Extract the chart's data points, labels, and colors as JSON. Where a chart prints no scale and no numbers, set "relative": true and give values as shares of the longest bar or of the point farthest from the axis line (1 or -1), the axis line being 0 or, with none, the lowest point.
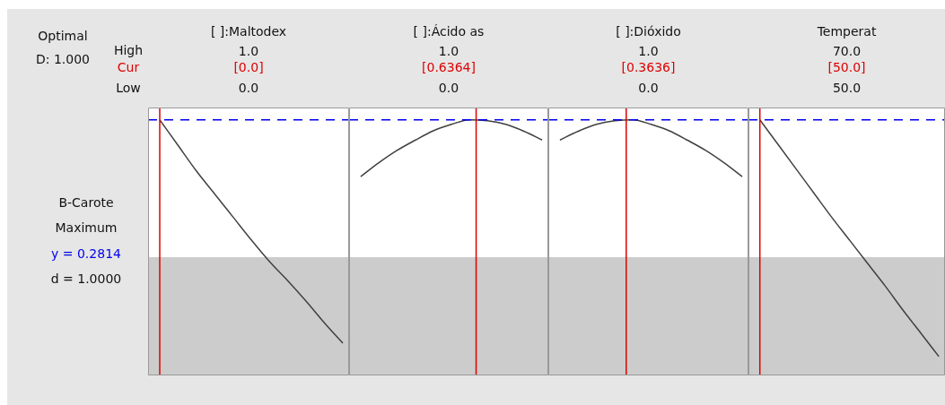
{
  "chart_data": [
    {
      "type": "line",
      "title": "[ ]:Maltodex",
      "relative": true,
      "tick_labels": false,
      "categories": [
        null,
        null,
        null,
        null,
        null,
        null,
        null,
        null,
        null,
        null,
        null
      ],
      "series": [
        {
          "color": "#404040",
          "values": [
            1,
            0.9,
            0.8,
            0.71,
            0.62,
            0.53,
            0.445,
            0.37,
            0.29,
            0.205,
            0.126
          ]
        }
      ],
      "ref_lines": [
        {
          "axis": "y",
          "value": 1,
          "color": "#0000ee",
          "line_style": "dashed"
        }
      ],
      "bands": [
        {
          "axis": "y",
          "from": 0,
          "to": 0.463,
          "color": "#cccccc"
        }
      ],
      "annotations": [
        "1.0",
        "0.0",
        "[0.0]",
        "Optimal",
        "D: 1.000",
        "High",
        "Cur",
        "Low",
        "B-Carote",
        "Maximum",
        "y = 0.2814",
        "d = 1.0000"
      ]
    },
    {
      "type": "line",
      "title": "[ ]:Ácido as",
      "relative": true,
      "tick_labels": false,
      "categories": [
        null,
        null,
        null,
        null,
        null,
        null,
        null,
        null,
        null,
        null,
        null
      ],
      "series": [
        {
          "color": "#404040",
          "values": [
            0.778,
            0.832,
            0.88,
            0.92,
            0.957,
            0.982,
            1,
            0.996,
            0.982,
            0.955,
            0.921
          ]
        }
      ],
      "ref_lines": [
        {
          "axis": "y",
          "value": 1,
          "color": "#0000ee",
          "line_style": "dashed"
        }
      ],
      "bands": [
        {
          "axis": "y",
          "from": 0,
          "to": 0.463,
          "color": "#cccccc"
        }
      ],
      "annotations": [
        "1.0",
        "0.0",
        "[0.6364]"
      ]
    },
    {
      "type": "line",
      "title": "[ ]:Dióxido",
      "relative": true,
      "tick_labels": false,
      "categories": [
        null,
        null,
        null,
        null,
        null,
        null,
        null,
        null,
        null,
        null,
        null
      ],
      "series": [
        {
          "color": "#404040",
          "values": [
            0.921,
            0.955,
            0.982,
            0.996,
            1,
            0.982,
            0.957,
            0.92,
            0.88,
            0.832,
            0.778
          ]
        }
      ],
      "ref_lines": [
        {
          "axis": "y",
          "value": 1,
          "color": "#0000ee",
          "line_style": "dashed"
        }
      ],
      "bands": [
        {
          "axis": "y",
          "from": 0,
          "to": 0.463,
          "color": "#cccccc"
        }
      ],
      "annotations": [
        "1.0",
        "0.0",
        "[0.3636]"
      ]
    },
    {
      "type": "line",
      "title": "Temperat",
      "relative": true,
      "tick_labels": false,
      "categories": [
        null,
        null,
        null,
        null,
        null,
        null,
        null,
        null,
        null,
        null,
        null
      ],
      "series": [
        {
          "color": "#404040",
          "values": [
            1,
            0.905,
            0.81,
            0.715,
            0.62,
            0.53,
            0.44,
            0.35,
            0.255,
            0.165,
            0.074
          ]
        }
      ],
      "ref_lines": [
        {
          "axis": "y",
          "value": 1,
          "color": "#0000ee",
          "line_style": "dashed"
        }
      ],
      "bands": [
        {
          "axis": "y",
          "from": 0,
          "to": 0.463,
          "color": "#cccccc"
        }
      ],
      "annotations": [
        "70.0",
        "50.0",
        "[50.0]"
      ]
    }
  ]
}
